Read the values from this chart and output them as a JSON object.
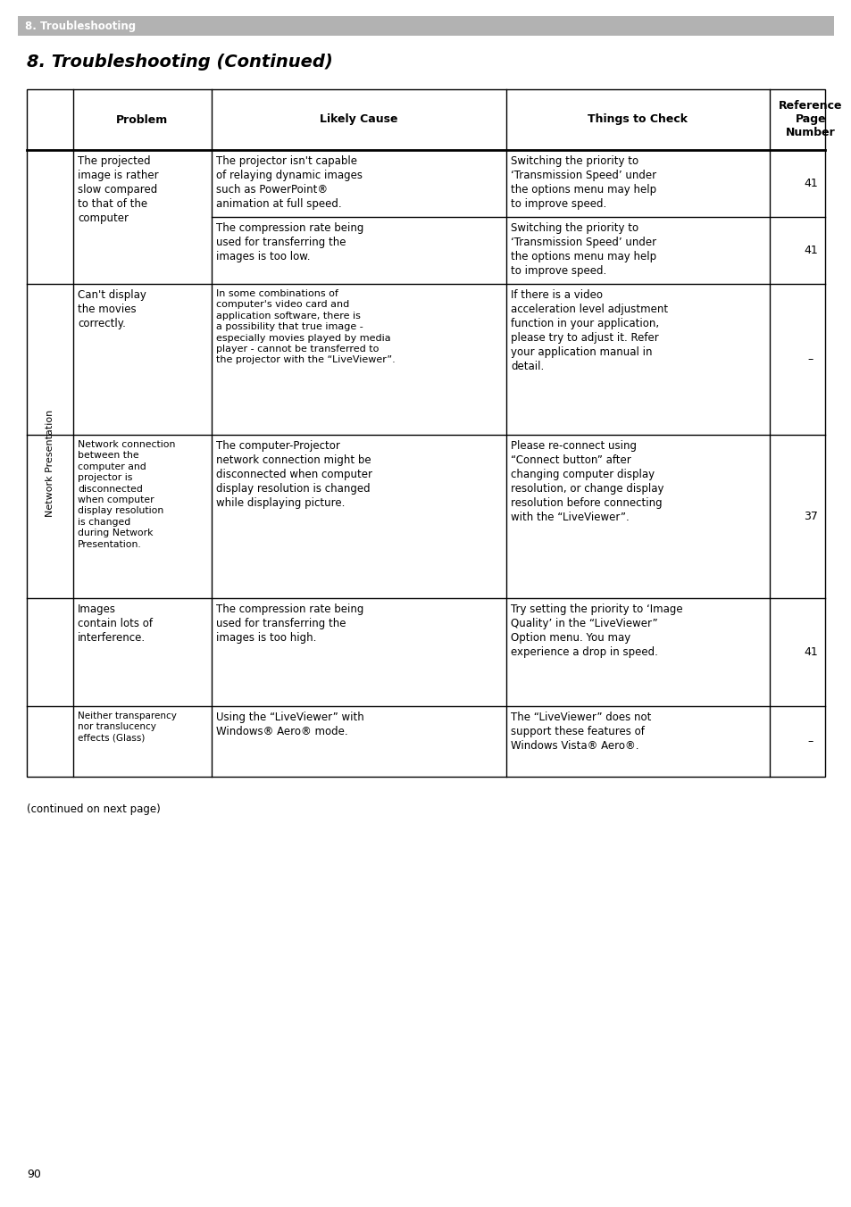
{
  "page_title": "8. Troubleshooting (Continued)",
  "header_bar_text": "8. Troubleshooting",
  "header_bar_color": "#b2b2b2",
  "header_text_color": "#ffffff",
  "footer_text": "(continued on next page)",
  "page_number": "90",
  "table": {
    "col_headers": [
      "Problem",
      "Likely Cause",
      "Things to Check",
      "Reference\nPage\nNumber"
    ],
    "row_label": "Network Presentation",
    "rows": [
      {
        "problem": "The projected\nimage is rather\nslow compared\nto that of the\ncomputer",
        "sub_rows": [
          {
            "likely_cause": "The projector isn't capable\nof relaying dynamic images\nsuch as PowerPoint®\nanimation at full speed.",
            "things_to_check": "Switching the priority to\n‘Transmission Speed’ under\nthe options menu may help\nto improve speed.",
            "ref": "41"
          },
          {
            "likely_cause": "The compression rate being\nused for transferring the\nimages is too low.",
            "things_to_check": "Switching the priority to\n‘Transmission Speed’ under\nthe options menu may help\nto improve speed.",
            "ref": "41"
          }
        ]
      },
      {
        "problem": "Can't display\nthe movies\ncorrectly.",
        "sub_rows": [
          {
            "likely_cause": "In some combinations of\ncomputer's video card and\napplication software, there is\na possibility that true image -\nespecially movies played by media\nplayer - cannot be transferred to\nthe projector with the “LiveViewer”.",
            "things_to_check": "If there is a video\nacceleration level adjustment\nfunction in your application,\nplease try to adjust it. Refer\nyour application manual in\ndetail.",
            "ref": "–"
          }
        ]
      },
      {
        "problem": "Network connection\nbetween the\ncomputer and\nprojector is\ndisconnected\nwhen computer\ndisplay resolution\nis changed\nduring Network\nPresentation.",
        "sub_rows": [
          {
            "likely_cause": "The computer-Projector\nnetwork connection might be\ndisconnected when computer\ndisplay resolution is changed\nwhile displaying picture.",
            "things_to_check": "Please re-connect using\n“Connect button” after\nchanging computer display\nresolution, or change display\nresolution before connecting\nwith the “LiveViewer”.",
            "ref": "37"
          }
        ]
      },
      {
        "problem": "Images\ncontain lots of\ninterference.",
        "sub_rows": [
          {
            "likely_cause": "The compression rate being\nused for transferring the\nimages is too high.",
            "things_to_check": "Try setting the priority to ‘Image\nQuality’ in the “LiveViewer”\nOption menu. You may\nexperience a drop in speed.",
            "ref": "41"
          }
        ]
      },
      {
        "problem": "Neither transparency\nnor translucency\neffects (Glass)",
        "sub_rows": [
          {
            "likely_cause": "Using the “LiveViewer” with\nWindows® Aero® mode.",
            "things_to_check": "The “LiveViewer” does not\nsupport these features of\nWindows Vista® Aero®.",
            "ref": "–"
          }
        ]
      }
    ]
  },
  "background_color": "#ffffff",
  "text_color": "#000000",
  "border_color": "#000000"
}
